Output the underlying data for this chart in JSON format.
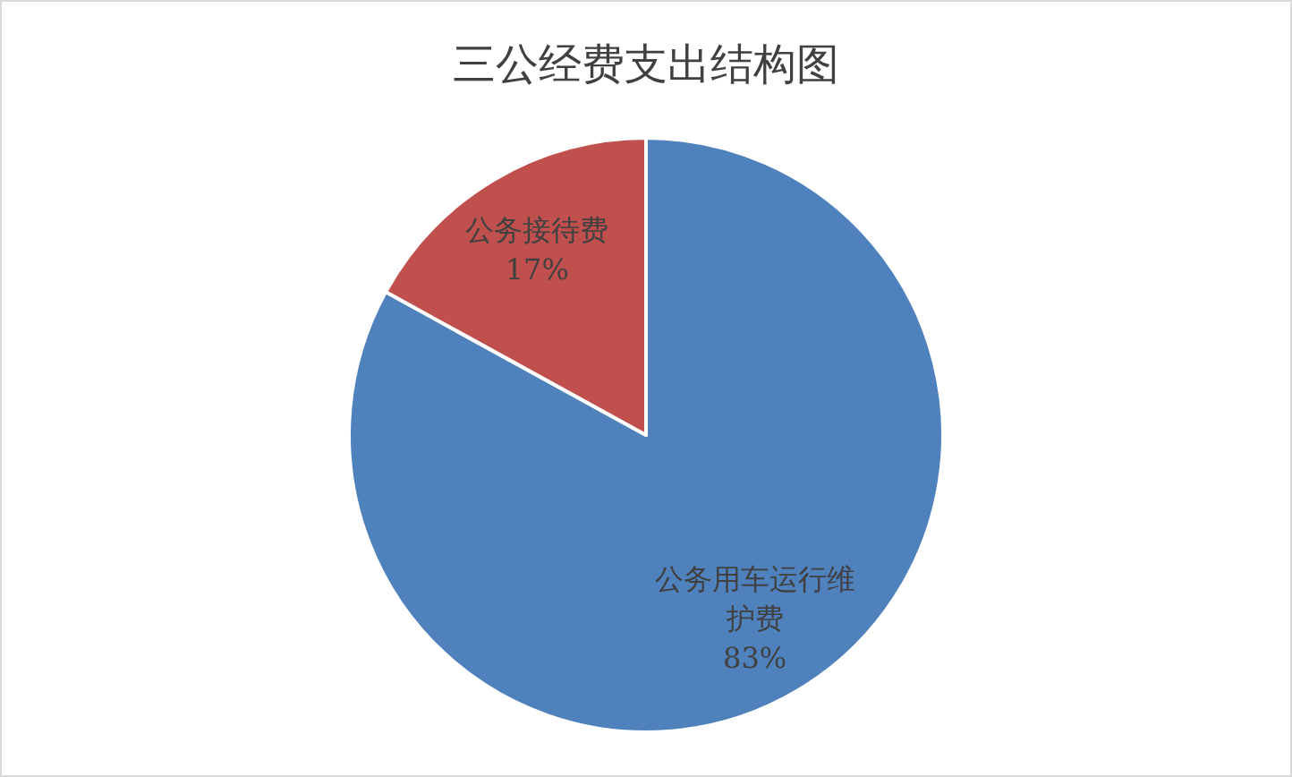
{
  "chart_data": {
    "type": "pie",
    "title": "三公经费支出结构图",
    "categories": [
      "公务用车运行维护费",
      "公务接待费"
    ],
    "values": [
      83,
      17
    ],
    "value_labels": [
      "83%",
      "17%"
    ],
    "colors": [
      "#4f81bd",
      "#c0504d"
    ]
  }
}
